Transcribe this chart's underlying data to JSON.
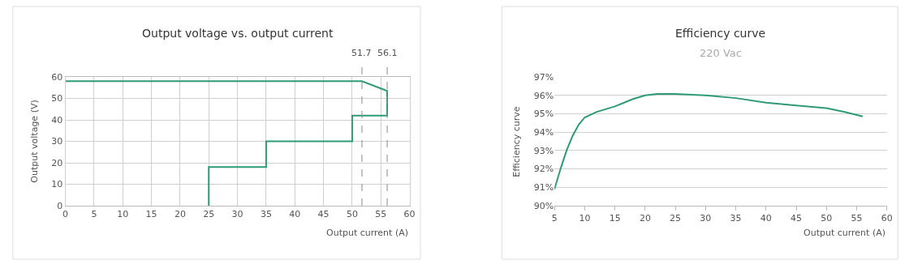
{
  "chart_data": [
    {
      "type": "line",
      "title": "Output voltage vs. output current",
      "xlabel": "Output current (A)",
      "ylabel": "Output voltage (V)",
      "x": [
        0,
        51.7,
        56.1,
        56.1,
        50,
        50,
        35,
        35,
        25,
        25
      ],
      "series": [
        {
          "color": "#2e9a78",
          "values": [
            58,
            58,
            53.5,
            42,
            42,
            30,
            30,
            18,
            18,
            0
          ]
        }
      ],
      "xlim": [
        0,
        60
      ],
      "xticks": [
        0,
        5,
        10,
        15,
        20,
        25,
        30,
        35,
        40,
        45,
        50,
        55,
        60
      ],
      "ylim": [
        0,
        60
      ],
      "yticks": [
        0,
        10,
        20,
        30,
        40,
        50,
        60
      ],
      "grid": true,
      "ref_lines": [
        {
          "axis": "x",
          "value": 51.7,
          "label": "51.7",
          "color": "#888888",
          "line_style": "dashed"
        },
        {
          "axis": "x",
          "value": 56.1,
          "label": "56.1",
          "color": "#888888",
          "line_style": "dashed"
        }
      ]
    },
    {
      "type": "line",
      "title": "Efficiency curve",
      "subtitle": "220 Vac",
      "xlabel": "Output current (A)",
      "ylabel": "Efficiency curve",
      "x": [
        5,
        6,
        7,
        8,
        9,
        10,
        12,
        15,
        18,
        20,
        22,
        25,
        30,
        35,
        40,
        45,
        50,
        53,
        56
      ],
      "series": [
        {
          "color": "#2e9a78",
          "values": [
            90.9,
            92.0,
            93.0,
            93.8,
            94.4,
            94.8,
            95.1,
            95.4,
            95.8,
            96.0,
            96.08,
            96.08,
            96.0,
            95.85,
            95.6,
            95.45,
            95.3,
            95.1,
            94.85
          ]
        }
      ],
      "xlim": [
        5,
        60
      ],
      "xticks": [
        5,
        10,
        15,
        20,
        25,
        30,
        35,
        40,
        45,
        50,
        55,
        60
      ],
      "ylim": [
        90,
        97
      ],
      "yticks": [
        {
          "value": 90,
          "label": "90%"
        },
        {
          "value": 91,
          "label": "91%"
        },
        {
          "value": 92,
          "label": "92%"
        },
        {
          "value": 93,
          "label": "93%"
        },
        {
          "value": 94,
          "label": "94%"
        },
        {
          "value": 95,
          "label": "95%"
        },
        {
          "value": 96,
          "label": "96%"
        },
        {
          "value": 97,
          "label": "97%"
        }
      ],
      "grid": "y"
    }
  ]
}
